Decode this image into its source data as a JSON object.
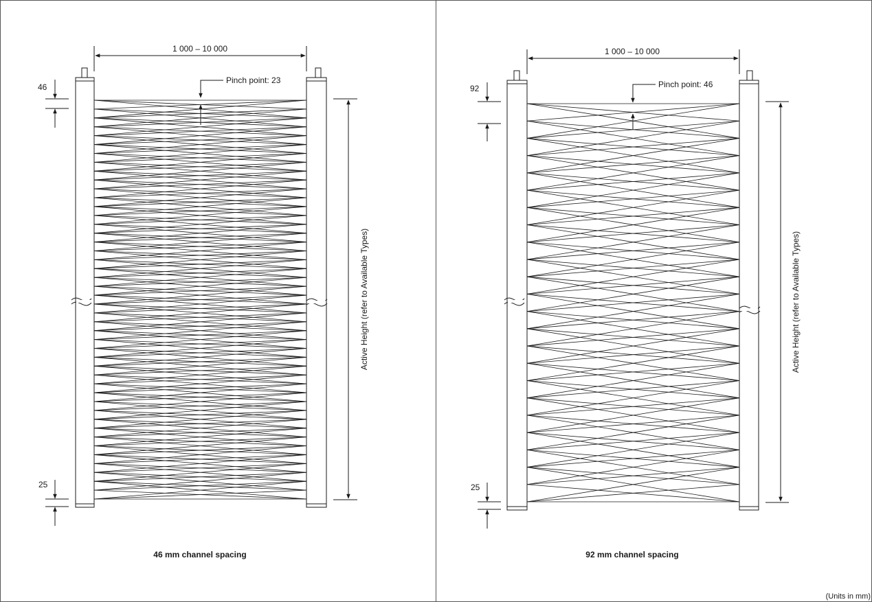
{
  "left": {
    "width_label": "1 000 – 10 000",
    "pinch_label": "Pinch point: 23",
    "top_offset": "46",
    "bottom_offset": "25",
    "height_label": "Active Height (refer to Available Types)",
    "caption": "46 mm channel spacing",
    "channel_spacing_mm": 46
  },
  "right": {
    "width_label": "1 000 – 10 000",
    "pinch_label": "Pinch point: 46",
    "top_offset": "92",
    "bottom_offset": "25",
    "height_label": "Active Height (refer to Available Types)",
    "caption": "92 mm channel spacing",
    "channel_spacing_mm": 92
  },
  "units_note": "(Units in mm)",
  "line_color": "#1a1a1a"
}
